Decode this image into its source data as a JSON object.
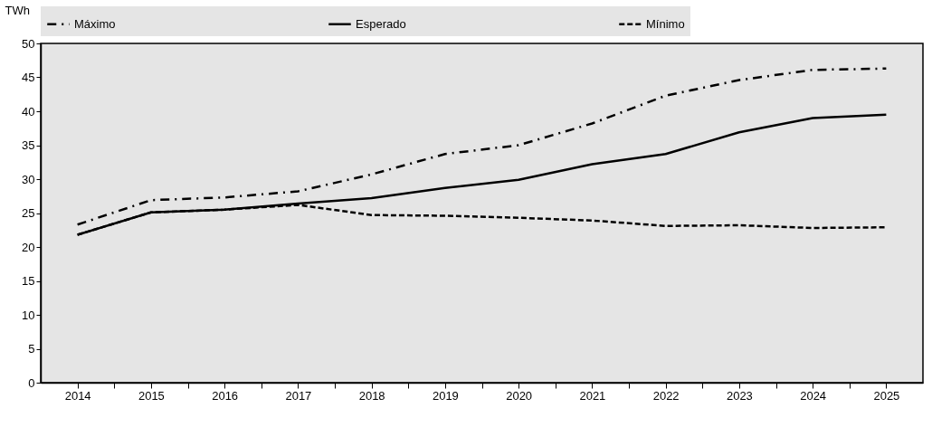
{
  "chart_data": {
    "type": "line",
    "ylabel": "TWh",
    "categories": [
      "2014",
      "2015",
      "2016",
      "2017",
      "2018",
      "2019",
      "2020",
      "2021",
      "2022",
      "2023",
      "2024",
      "2025"
    ],
    "series": [
      {
        "name": "Máximo",
        "color": "#000000",
        "line_style": "dashdot",
        "values": [
          23.3,
          26.9,
          27.3,
          28.2,
          30.7,
          33.7,
          35.0,
          38.2,
          42.3,
          44.6,
          46.1,
          46.3
        ]
      },
      {
        "name": "Esperado",
        "color": "#000000",
        "line_style": "solid",
        "values": [
          21.8,
          25.1,
          25.5,
          26.4,
          27.2,
          28.7,
          29.9,
          32.2,
          33.7,
          36.9,
          39.0,
          39.5
        ]
      },
      {
        "name": "Mínimo",
        "color": "#000000",
        "line_style": "dashed",
        "values": [
          21.8,
          25.1,
          25.5,
          26.2,
          24.7,
          24.6,
          24.3,
          23.9,
          23.1,
          23.2,
          22.8,
          22.9
        ]
      }
    ],
    "ylim": [
      0,
      50
    ],
    "yticks": [
      0,
      5,
      10,
      15,
      20,
      25,
      30,
      35,
      40,
      45,
      50
    ],
    "grid": false,
    "legend": "top",
    "marker": "none"
  }
}
